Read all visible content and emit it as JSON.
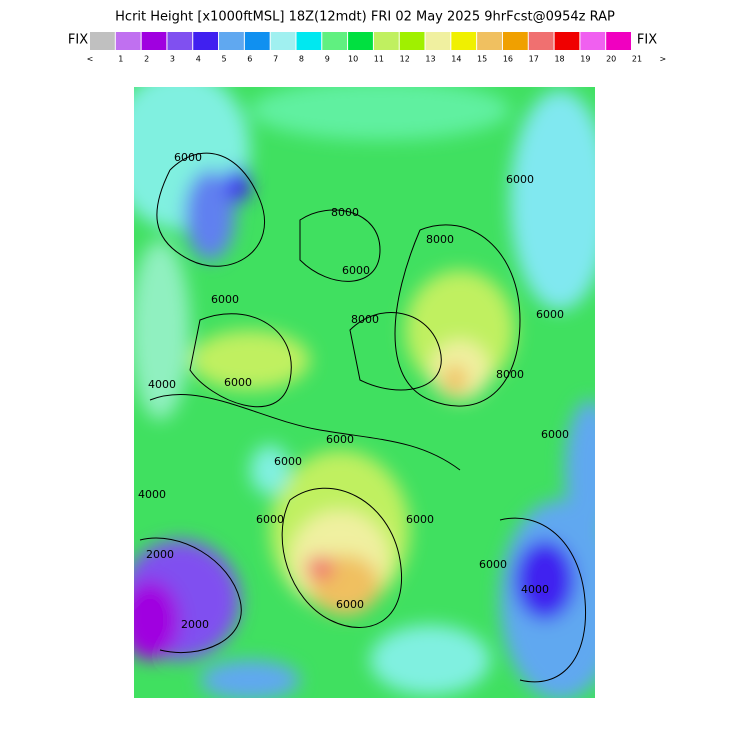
{
  "header": {
    "title": "Hcrit Height [x1000ftMSL] 18Z(12mdt) FRI 02 May 2025 9hrFcst@0954z RAP"
  },
  "legend": {
    "left": "FIX",
    "right": "FIX",
    "colors": [
      "#c0c0c0",
      "#c070f0",
      "#a000e0",
      "#8050f0",
      "#4020f0",
      "#60a8f0",
      "#1090f0",
      "#a0f0f0",
      "#00e8f0",
      "#60f080",
      "#00e040",
      "#c0f060",
      "#a0f000",
      "#f0f0a0",
      "#f0f000",
      "#f0c060",
      "#f0a000",
      "#f07070",
      "#f00000",
      "#f060f0",
      "#f000c0"
    ],
    "labels": [
      "<",
      "1",
      "2",
      "3",
      "4",
      "5",
      "6",
      "7",
      "8",
      "9",
      "10",
      "11",
      "12",
      "13",
      "14",
      "15",
      "16",
      "17",
      "18",
      "19",
      "20",
      "21",
      ">"
    ]
  },
  "map": {
    "contour_labels": [
      "6000",
      "8000",
      "6000",
      "6000",
      "8000",
      "6000",
      "6000",
      "4000",
      "6000",
      "8000",
      "6000",
      "6000",
      "6000",
      "4000",
      "2000",
      "6000",
      "4000",
      "2000",
      "6000",
      "6000",
      "6000",
      "8000"
    ]
  }
}
